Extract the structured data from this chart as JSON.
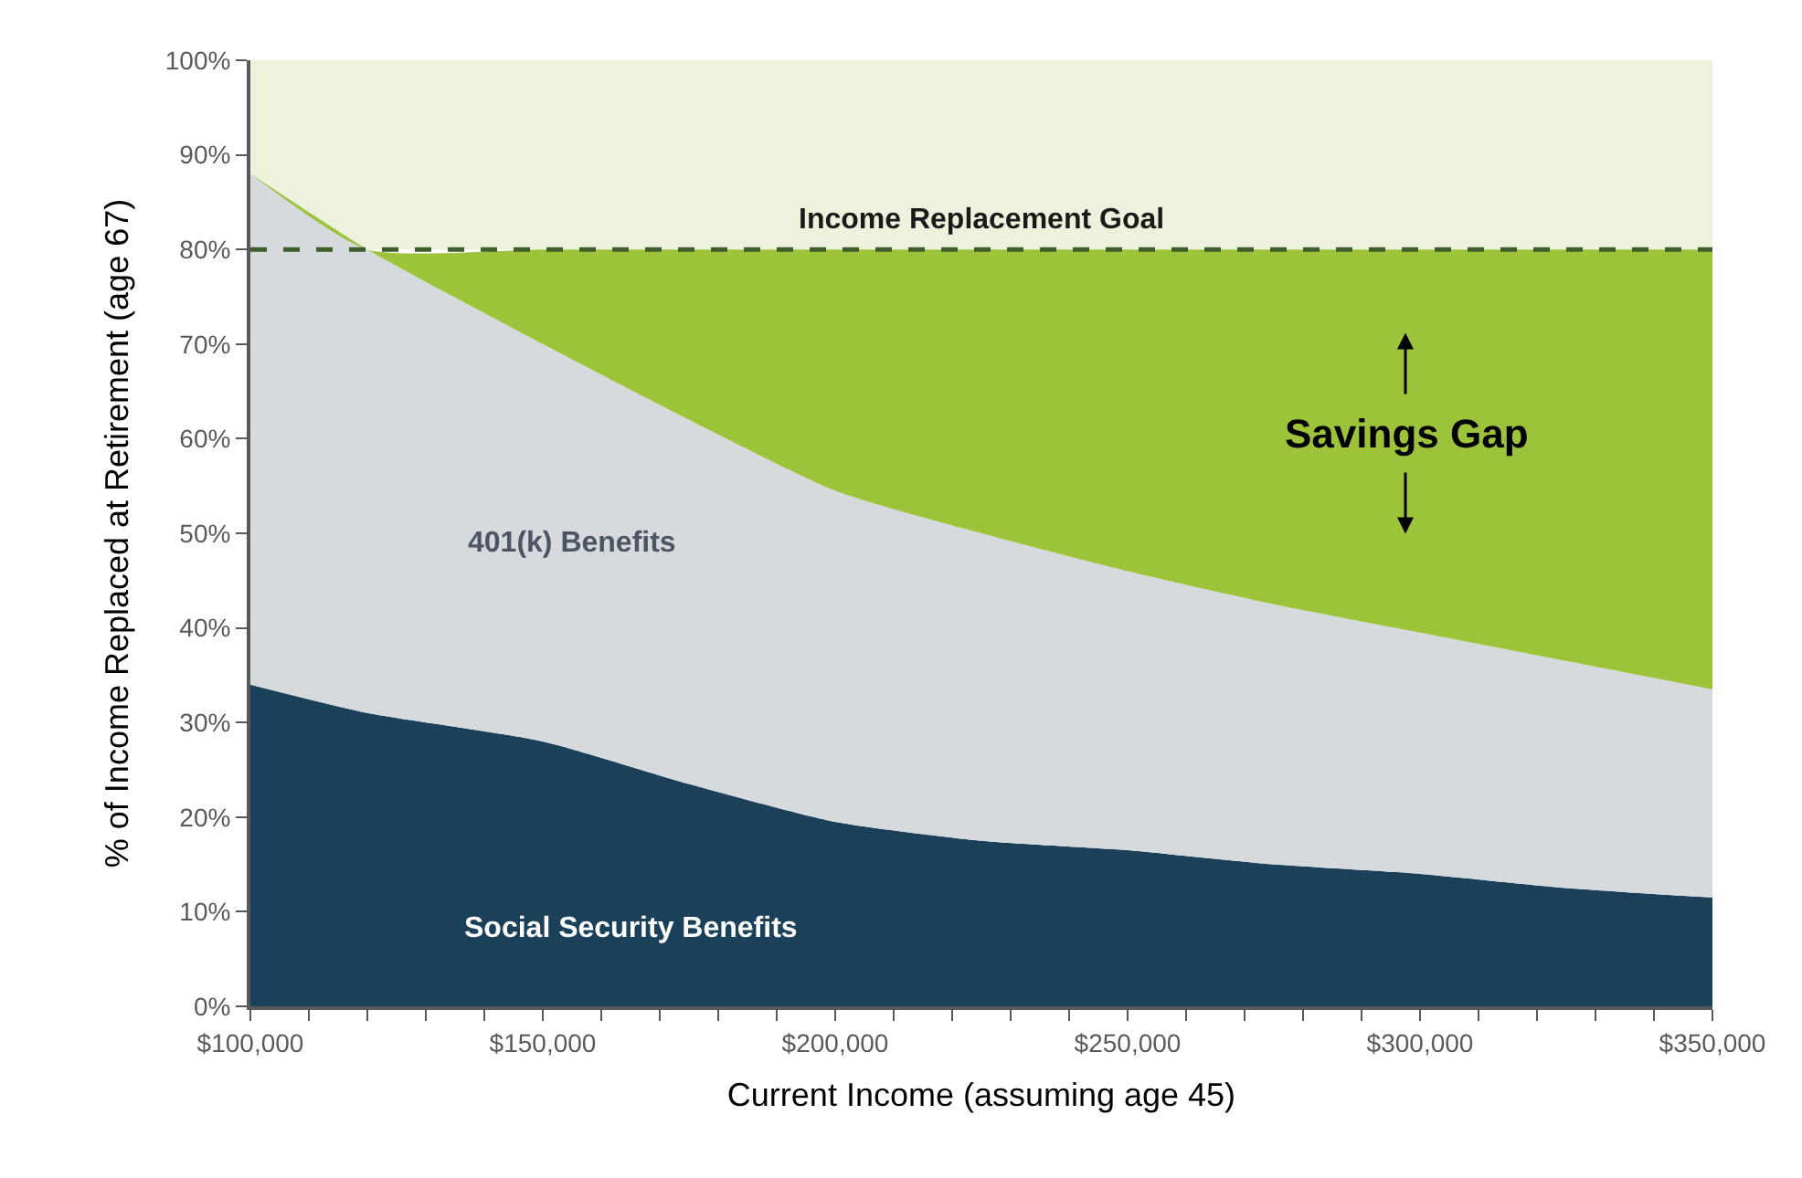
{
  "chart_data": {
    "type": "area",
    "stacked": true,
    "xlabel": "Current Income (assuming age 45)",
    "ylabel": "% of Income Replaced at Retirement (age 67)",
    "x": [
      100000,
      120000,
      150000,
      175000,
      200000,
      225000,
      250000,
      275000,
      300000,
      325000,
      350000
    ],
    "series": [
      {
        "name": "Social Security Benefits",
        "color": "#1b4059",
        "values": [
          34,
          31,
          28,
          23.5,
          19.5,
          17.5,
          16.5,
          15,
          14,
          12.5,
          11.5
        ]
      },
      {
        "name": "401(k) Benefits",
        "color": "#d6dadd",
        "values": [
          54,
          49,
          42,
          38.5,
          35,
          32.5,
          29.5,
          27.5,
          25.5,
          24,
          22
        ]
      },
      {
        "name": "Savings Gap",
        "color": "#9dc33b",
        "values": [
          0,
          0,
          10,
          18,
          25.5,
          30,
          34,
          37.5,
          40.5,
          43.5,
          46.5
        ]
      }
    ],
    "xlim": [
      100000,
      350000
    ],
    "xticks": [
      {
        "value": 100000,
        "label": "$100,000"
      },
      {
        "value": 110000,
        "label": null
      },
      {
        "value": 120000,
        "label": null
      },
      {
        "value": 130000,
        "label": null
      },
      {
        "value": 140000,
        "label": null
      },
      {
        "value": 150000,
        "label": "$150,000"
      },
      {
        "value": 160000,
        "label": null
      },
      {
        "value": 170000,
        "label": null
      },
      {
        "value": 180000,
        "label": null
      },
      {
        "value": 190000,
        "label": null
      },
      {
        "value": 200000,
        "label": "$200,000"
      },
      {
        "value": 210000,
        "label": null
      },
      {
        "value": 220000,
        "label": null
      },
      {
        "value": 230000,
        "label": null
      },
      {
        "value": 240000,
        "label": null
      },
      {
        "value": 250000,
        "label": "$250,000"
      },
      {
        "value": 260000,
        "label": null
      },
      {
        "value": 270000,
        "label": null
      },
      {
        "value": 280000,
        "label": null
      },
      {
        "value": 290000,
        "label": null
      },
      {
        "value": 300000,
        "label": "$300,000"
      },
      {
        "value": 310000,
        "label": null
      },
      {
        "value": 320000,
        "label": null
      },
      {
        "value": 330000,
        "label": null
      },
      {
        "value": 340000,
        "label": null
      },
      {
        "value": 350000,
        "label": "$350,000"
      }
    ],
    "ylim": [
      0,
      100
    ],
    "yticks": [
      {
        "value": 0,
        "label": "0%"
      },
      {
        "value": 10,
        "label": "10%"
      },
      {
        "value": 20,
        "label": "20%"
      },
      {
        "value": 30,
        "label": "30%"
      },
      {
        "value": 40,
        "label": "40%"
      },
      {
        "value": 50,
        "label": "50%"
      },
      {
        "value": 60,
        "label": "60%"
      },
      {
        "value": 70,
        "label": "70%"
      },
      {
        "value": 80,
        "label": "80%"
      },
      {
        "value": 90,
        "label": "90%"
      },
      {
        "value": 100,
        "label": "100%"
      }
    ],
    "ref_lines": [
      {
        "axis": "y",
        "value": 80,
        "label": "Income Replacement Goal",
        "color": "#3d5e2a",
        "line_style": "dashed"
      }
    ],
    "bands": [
      {
        "axis": "y",
        "from": 80,
        "to": 100,
        "color": "#eef1dc"
      }
    ],
    "grid": false,
    "legend": false
  }
}
